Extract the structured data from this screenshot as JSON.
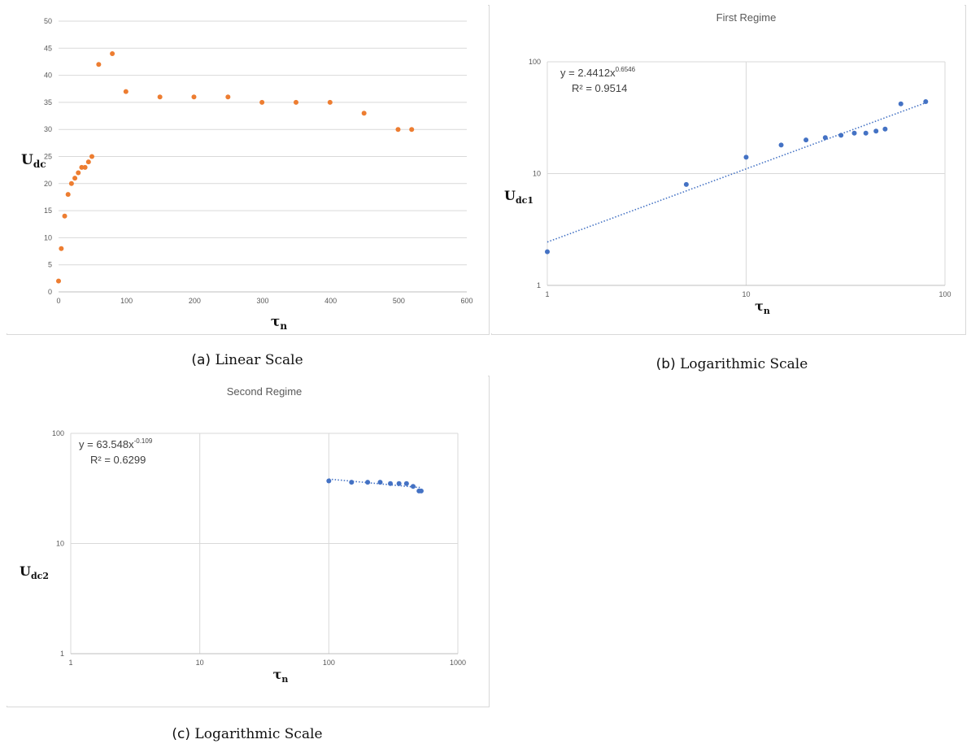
{
  "captions": {
    "a_tag": "(a)",
    "a_text": "Linear Scale",
    "b_tag": "(b)",
    "b_text": "Logarithmic Scale",
    "c_tag": "(c)",
    "c_text": "Logarithmic Scale"
  },
  "chart_data": [
    {
      "id": "a",
      "type": "scatter",
      "title": "",
      "xlabel_main": "τ",
      "xlabel_sub": "n",
      "ylabel_main": "U",
      "ylabel_sub": "dc",
      "xscale": "linear",
      "yscale": "linear",
      "xlim": [
        0,
        600
      ],
      "ylim": [
        0,
        50
      ],
      "xticks": [
        "0",
        "100",
        "200",
        "300",
        "400",
        "500",
        "600"
      ],
      "yticks": [
        "0",
        "5",
        "10",
        "15",
        "20",
        "25",
        "30",
        "35",
        "40",
        "45",
        "50"
      ],
      "grid": "horizontal",
      "marker_color": "#ed7d31",
      "series": [
        {
          "x": [
            0,
            4,
            9,
            14,
            19,
            24,
            29,
            34,
            39,
            44,
            49,
            59,
            79,
            99,
            149,
            199,
            249,
            299,
            349,
            399,
            449,
            499,
            519
          ],
          "y": [
            2,
            8,
            14,
            18,
            20,
            21,
            22,
            23,
            23,
            24,
            25,
            42,
            44,
            37,
            36,
            36,
            36,
            35,
            35,
            35,
            33,
            30,
            30
          ]
        }
      ]
    },
    {
      "id": "b",
      "type": "scatter",
      "title": "First Regime",
      "xlabel_main": "τ",
      "xlabel_sub": "n",
      "ylabel_main": "U",
      "ylabel_sub": "dc1",
      "xscale": "log",
      "yscale": "log",
      "xlim": [
        1,
        100
      ],
      "ylim": [
        1,
        100
      ],
      "xticks": [
        "1",
        "10",
        "100"
      ],
      "yticks": [
        "1",
        "10",
        "100"
      ],
      "grid": "major",
      "marker_color": "#4472c4",
      "trendline": {
        "type": "power",
        "a": 2.4412,
        "b": 0.6546,
        "equation_prefix": "y = 2.4412x",
        "exponent": "0.6546",
        "r2": "R² = 0.9514"
      },
      "series": [
        {
          "x": [
            1,
            5,
            10,
            15,
            20,
            25,
            30,
            35,
            40,
            45,
            50,
            60,
            80
          ],
          "y": [
            2,
            8,
            14,
            18,
            20,
            21,
            22,
            23,
            23,
            24,
            25,
            42,
            44
          ]
        }
      ]
    },
    {
      "id": "c",
      "type": "scatter",
      "title": "Second Regime",
      "xlabel_main": "τ",
      "xlabel_sub": "n",
      "ylabel_main": "U",
      "ylabel_sub": "dc2",
      "xscale": "log",
      "yscale": "log",
      "xlim": [
        1,
        1000
      ],
      "ylim": [
        1,
        100
      ],
      "xticks": [
        "1",
        "10",
        "100",
        "1000"
      ],
      "yticks": [
        "1",
        "10",
        "100"
      ],
      "grid": "major",
      "marker_color": "#4472c4",
      "trendline": {
        "type": "power",
        "a": 63.548,
        "b": -0.109,
        "equation_prefix": "y = 63.548x",
        "exponent": "-0.109",
        "r2": "R² = 0.6299"
      },
      "series": [
        {
          "x": [
            100,
            150,
            200,
            250,
            300,
            350,
            400,
            450,
            500,
            520
          ],
          "y": [
            37,
            36,
            36,
            36,
            35,
            35,
            35,
            33,
            30,
            30
          ]
        }
      ]
    }
  ]
}
